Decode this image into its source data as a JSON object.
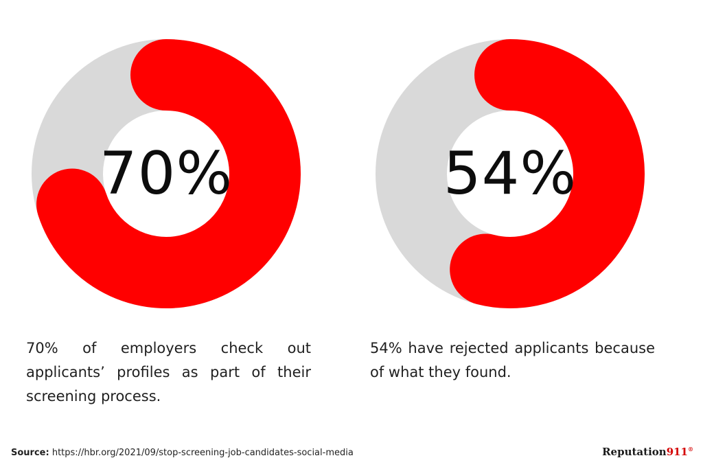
{
  "chart_data": [
    {
      "type": "pie",
      "value_percent": 70,
      "label": "70%",
      "caption": "70% of employers check out applicants’ profiles as part of their screening process."
    },
    {
      "type": "pie",
      "value_percent": 54,
      "label": "54%",
      "caption": "54% have rejected applicants because of what they found."
    }
  ],
  "colors": {
    "fill": "#ff0000",
    "track": "#d9d9d9"
  },
  "footer": {
    "source_label": "Source:",
    "source_url": "https://hbr.org/2021/09/stop-screening-job-candidates-social-media",
    "brand_text": "Reputation",
    "brand_number": "911",
    "brand_mark": "®"
  }
}
